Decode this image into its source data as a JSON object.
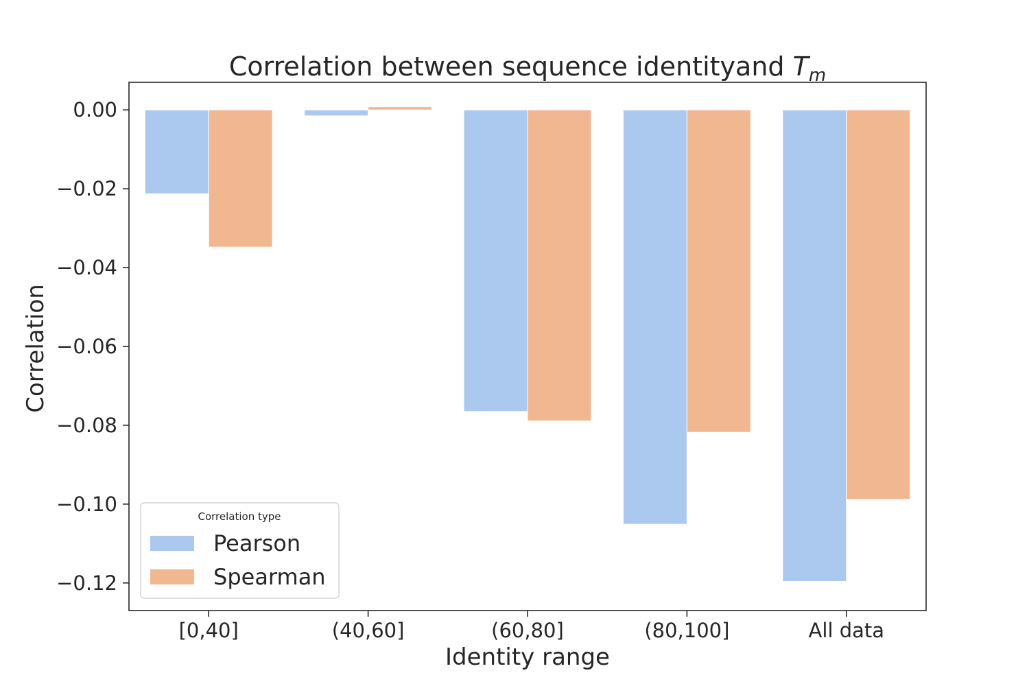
{
  "chart_data": {
    "type": "bar",
    "title_main": "Correlation between sequence identityand ",
    "title_symbol": "T",
    "title_subscript": "m",
    "xlabel": "Identity range",
    "ylabel": "Correlation",
    "categories": [
      "[0,40]",
      "(40,60]",
      "(60,80]",
      "(80,100]",
      "All data"
    ],
    "series": [
      {
        "name": "Pearson",
        "color": "#abc9ee",
        "values": [
          -0.0213,
          -0.0015,
          -0.0765,
          -0.1051,
          -0.1196
        ]
      },
      {
        "name": "Spearman",
        "color": "#f1b791",
        "values": [
          -0.0348,
          0.0008,
          -0.0789,
          -0.0818,
          -0.0988
        ]
      }
    ],
    "ylim": [
      -0.127,
      0.007
    ],
    "yticks": [
      0.0,
      -0.02,
      -0.04,
      -0.06,
      -0.08,
      -0.1,
      -0.12
    ],
    "ytick_labels": [
      "0.00",
      "−0.02",
      "−0.04",
      "−0.06",
      "−0.08",
      "−0.10",
      "−0.12"
    ],
    "grid": false,
    "legend": {
      "title": "Correlation type",
      "placement": "lower-left"
    }
  }
}
